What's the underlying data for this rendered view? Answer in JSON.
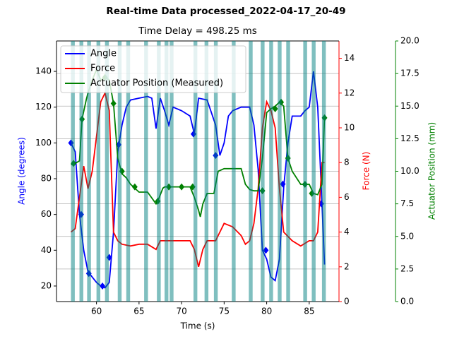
{
  "chart_data": {
    "type": "line",
    "title": "Real-time Data processed_2022-04-17_20-49",
    "subtitle": "Time Delay = 498.25 ms",
    "xlabel": "Time (s)",
    "xlim": [
      55.3,
      88.5
    ],
    "xticks": [
      60,
      65,
      70,
      75,
      80,
      85
    ],
    "axes": {
      "y": {
        "label": "Angle (degrees)",
        "color": "#0000ff",
        "ylim": [
          11.3,
          157
        ],
        "yticks": [
          20,
          40,
          60,
          80,
          100,
          120,
          140
        ]
      },
      "y2": {
        "label": "Force (N)",
        "color": "#ff0000",
        "ylim": [
          0,
          15
        ],
        "yticks": [
          0,
          2,
          4,
          6,
          8,
          10,
          12,
          14
        ]
      },
      "y3": {
        "label": "Actuator Position (mm)",
        "color": "#008000",
        "ylim": [
          0,
          20
        ],
        "yticks": [
          {
            "value": 0,
            "label": "0.0"
          },
          2.5,
          {
            "value": 5,
            "label": "5.0"
          },
          7.5,
          {
            "value": 10,
            "label": "10.0"
          },
          12.5,
          {
            "value": 15,
            "label": "15.0"
          },
          17.5,
          {
            "value": 20,
            "label": "20.0"
          }
        ]
      }
    },
    "grid_axis": "y3",
    "legend": "upper left",
    "spans": {
      "color": "#008080",
      "ranges": [
        [
          57.0,
          57.45
        ],
        [
          58.0,
          58.45
        ],
        [
          58.9,
          59.35
        ],
        [
          60.0,
          60.45
        ],
        [
          61.0,
          61.45
        ],
        [
          62.5,
          62.95
        ],
        [
          63.5,
          63.95
        ],
        [
          65.6,
          66.05
        ],
        [
          67.1,
          67.55
        ],
        [
          68.0,
          68.45
        ],
        [
          68.6,
          69.05
        ],
        [
          71.4,
          71.85
        ],
        [
          72.7,
          73.15
        ],
        [
          73.8,
          74.25
        ],
        [
          75.9,
          76.35
        ],
        [
          77.9,
          78.35
        ],
        [
          79.3,
          79.75
        ],
        [
          80.3,
          80.75
        ],
        [
          81.3,
          81.75
        ],
        [
          82.3,
          82.75
        ],
        [
          84.3,
          84.75
        ],
        [
          85.3,
          85.75
        ],
        [
          86.5,
          86.95
        ]
      ]
    },
    "series": [
      {
        "name": "Angle",
        "color": "#0000ff",
        "axis": "y",
        "x": [
          57,
          57.5,
          58,
          58.5,
          59,
          59.5,
          60,
          60.5,
          61,
          61.5,
          62,
          62.5,
          63,
          63.5,
          64,
          65,
          66,
          66.5,
          67,
          67.5,
          68,
          68.5,
          69,
          70,
          71,
          71.5,
          72,
          73,
          74,
          74.5,
          75,
          75.5,
          76,
          77,
          78,
          78.5,
          79,
          79.5,
          80,
          80.5,
          81,
          81.5,
          82,
          82.5,
          83,
          84,
          84.5,
          85,
          85.5,
          86,
          86.5,
          86.8
        ],
        "values": [
          100,
          95,
          60,
          40,
          28,
          25,
          22,
          20,
          19,
          22,
          50,
          95,
          110,
          120,
          124,
          125,
          126,
          125,
          108,
          125,
          118,
          110,
          120,
          118,
          115,
          105,
          125,
          124,
          110,
          93,
          100,
          115,
          118,
          120,
          120,
          110,
          85,
          40,
          35,
          25,
          23,
          35,
          75,
          100,
          115,
          115,
          118,
          120,
          140,
          120,
          66,
          32
        ],
        "markers_x": [
          57,
          58.2,
          59.1,
          60.7,
          61.5,
          62.6,
          71.4,
          74,
          79.9,
          81.9,
          86.4
        ],
        "markers_values": [
          100,
          60,
          27,
          20,
          36,
          99,
          105,
          93,
          40,
          77,
          66
        ]
      },
      {
        "name": "Force",
        "color": "#ff0000",
        "axis": "y2",
        "x": [
          57,
          57.5,
          58,
          58.5,
          59,
          59.5,
          60,
          60.5,
          61,
          61.5,
          62,
          62.5,
          63,
          64,
          65,
          66,
          67,
          67.5,
          68,
          70,
          71,
          71.5,
          72,
          72.5,
          73,
          74,
          74.5,
          75,
          76,
          77,
          77.5,
          78,
          78.5,
          79,
          79.5,
          80,
          80.5,
          81,
          81.5,
          82,
          83,
          84,
          85,
          85.5,
          86,
          86.5,
          86.8
        ],
        "values": [
          4,
          4.2,
          6,
          7.8,
          6.5,
          7.5,
          9.5,
          11.5,
          12,
          11,
          4,
          3.5,
          3.3,
          3.2,
          3.3,
          3.3,
          3.0,
          3.5,
          3.5,
          3.5,
          3.5,
          3.0,
          2,
          3.0,
          3.5,
          3.5,
          4.0,
          4.5,
          4.3,
          3.8,
          3.3,
          3.5,
          4.5,
          6.5,
          10,
          11.5,
          11,
          10,
          6.5,
          4,
          3.5,
          3.2,
          3.5,
          3.5,
          4,
          8,
          8
        ]
      },
      {
        "name": "Actuator Position (Measured)",
        "color": "#008000",
        "axis": "y3",
        "x": [
          57,
          57.5,
          58,
          58.3,
          58.8,
          59,
          59.5,
          60,
          60.5,
          61,
          61.5,
          62,
          62.5,
          63,
          63.5,
          64,
          64.5,
          65,
          66,
          67,
          67.2,
          67.8,
          68,
          70,
          71,
          71.5,
          72,
          72.2,
          72.5,
          73,
          73.8,
          74.3,
          75,
          76,
          77,
          77.5,
          78,
          78.5,
          79,
          79.5,
          80,
          80.5,
          81,
          81.5,
          82,
          82.5,
          83,
          84,
          84.5,
          85,
          85.5,
          86,
          86.5,
          86.8
        ],
        "values": [
          10.5,
          10.6,
          10.8,
          14,
          15.5,
          16,
          17,
          17.8,
          17,
          17.2,
          17,
          15.2,
          11,
          9.8,
          9.5,
          9,
          8.7,
          8.4,
          8.4,
          7.5,
          7.7,
          8.7,
          8.8,
          8.8,
          8.8,
          8,
          7,
          6.5,
          7.5,
          8.3,
          8.3,
          10,
          10.2,
          10.2,
          10.2,
          9,
          8.6,
          8.5,
          8.5,
          11,
          14.5,
          14.8,
          15,
          15.3,
          15,
          11,
          10,
          9,
          9,
          9,
          8.3,
          8.2,
          9,
          14.2
        ],
        "markers_x": [
          57.3,
          58.3,
          61,
          62,
          63,
          64.5,
          67.2,
          68.5,
          70,
          71.3,
          79.5,
          81,
          81.7,
          82.5,
          84.5,
          85.3,
          86.8
        ],
        "markers_values": [
          10.6,
          14,
          17.2,
          15.2,
          10,
          8.8,
          7.7,
          8.8,
          8.8,
          8.8,
          8.5,
          14.8,
          15.3,
          11,
          9,
          8.3,
          14.1
        ]
      }
    ]
  }
}
